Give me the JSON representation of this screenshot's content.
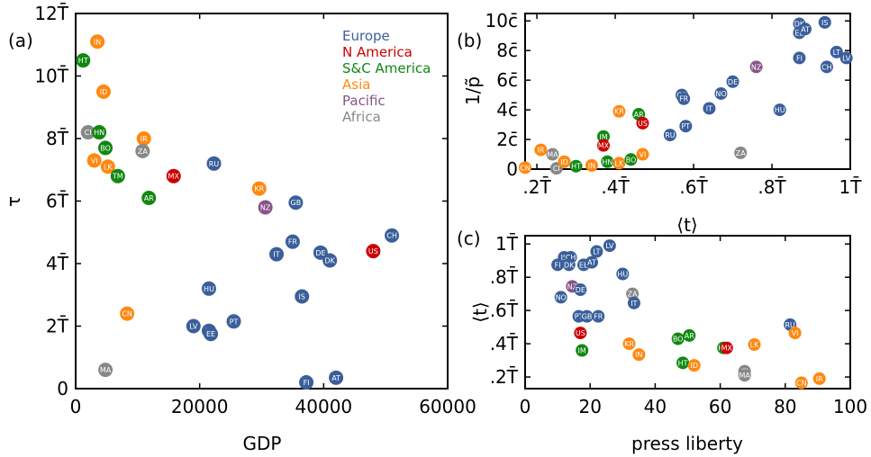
{
  "colors": {
    "Europe": "#3a5f9b",
    "N America": "#cc0000",
    "S&C America": "#118811",
    "Asia": "#ff8811",
    "Pacific": "#885588",
    "Africa": "#888888"
  },
  "chart_data": [
    {
      "type": "scatter",
      "panel_label": "(a)",
      "xlabel": "GDP",
      "ylabel": "τ",
      "xlim": [
        0,
        60000
      ],
      "ylim": [
        0,
        12
      ],
      "x_ticks": [
        0,
        20000,
        40000,
        60000
      ],
      "x_tick_labels": [
        "0",
        "20000",
        "40000",
        "60000"
      ],
      "y_ticks": [
        0,
        2,
        4,
        6,
        8,
        10,
        12
      ],
      "y_tick_labels": [
        "0",
        "2T̄",
        "4T̄",
        "6T̄",
        "8T̄",
        "10T̄",
        "12T̄"
      ],
      "legend": {
        "placement": "top-right",
        "entries": [
          "Europe",
          "N America",
          "S&C America",
          "Asia",
          "Pacific",
          "Africa"
        ]
      },
      "points": [
        {
          "label": "HT",
          "region": "S&C America",
          "x": 1200,
          "y": 10.5
        },
        {
          "label": "IN",
          "region": "Asia",
          "x": 3500,
          "y": 11.1
        },
        {
          "label": "ID",
          "region": "Asia",
          "x": 4500,
          "y": 9.5
        },
        {
          "label": "CI",
          "region": "Africa",
          "x": 2000,
          "y": 8.2
        },
        {
          "label": "HN",
          "region": "S&C America",
          "x": 3800,
          "y": 8.2
        },
        {
          "label": "BO",
          "region": "S&C America",
          "x": 4800,
          "y": 7.7
        },
        {
          "label": "VI",
          "region": "Asia",
          "x": 3000,
          "y": 7.3
        },
        {
          "label": "LK",
          "region": "Asia",
          "x": 5200,
          "y": 7.1
        },
        {
          "label": "TM",
          "region": "S&C America",
          "x": 6800,
          "y": 6.8
        },
        {
          "label": "IR",
          "region": "Asia",
          "x": 11000,
          "y": 8.0
        },
        {
          "label": "ZA",
          "region": "Africa",
          "x": 10800,
          "y": 7.6
        },
        {
          "label": "MX",
          "region": "N America",
          "x": 15800,
          "y": 6.8
        },
        {
          "label": "AR",
          "region": "S&C America",
          "x": 11800,
          "y": 6.1
        },
        {
          "label": "RU",
          "region": "Europe",
          "x": 22300,
          "y": 7.2
        },
        {
          "label": "CN",
          "region": "Asia",
          "x": 8300,
          "y": 2.4
        },
        {
          "label": "MA",
          "region": "Africa",
          "x": 4800,
          "y": 0.6
        },
        {
          "label": "HU",
          "region": "Europe",
          "x": 21500,
          "y": 3.2
        },
        {
          "label": "LV",
          "region": "Europe",
          "x": 19000,
          "y": 2.0
        },
        {
          "label": "LT",
          "region": "Europe",
          "x": 21500,
          "y": 1.85
        },
        {
          "label": "EE",
          "region": "Europe",
          "x": 21800,
          "y": 1.75
        },
        {
          "label": "PT",
          "region": "Europe",
          "x": 25500,
          "y": 2.15
        },
        {
          "label": "KR",
          "region": "Asia",
          "x": 29600,
          "y": 6.4
        },
        {
          "label": "NZ",
          "region": "Pacific",
          "x": 30600,
          "y": 5.8
        },
        {
          "label": "GB",
          "region": "Europe",
          "x": 35500,
          "y": 5.95
        },
        {
          "label": "FR",
          "region": "Europe",
          "x": 35000,
          "y": 4.7
        },
        {
          "label": "IT",
          "region": "Europe",
          "x": 32400,
          "y": 4.3
        },
        {
          "label": "DE",
          "region": "Europe",
          "x": 39500,
          "y": 4.35
        },
        {
          "label": "DK",
          "region": "Europe",
          "x": 41000,
          "y": 4.1
        },
        {
          "label": "US",
          "region": "N America",
          "x": 48000,
          "y": 4.4
        },
        {
          "label": "CH",
          "region": "Europe",
          "x": 51000,
          "y": 4.9
        },
        {
          "label": "IS",
          "region": "Europe",
          "x": 36500,
          "y": 2.95
        },
        {
          "label": "FI",
          "region": "Europe",
          "x": 37200,
          "y": 0.2
        },
        {
          "label": "AT",
          "region": "Europe",
          "x": 42000,
          "y": 0.35
        }
      ]
    },
    {
      "type": "scatter",
      "panel_label": "(b)",
      "xlabel": "⟨t⟩",
      "ylabel": "1/p̃",
      "xlim": [
        0.17,
        1.0
      ],
      "ylim": [
        0,
        10.5
      ],
      "x_ticks": [
        0.2,
        0.4,
        0.6,
        0.8,
        1.0
      ],
      "x_tick_labels": [
        ".2T̄",
        ".4T̄",
        ".6T̄",
        ".8T̄",
        "1T̄"
      ],
      "y_ticks": [
        0,
        2,
        4,
        6,
        8,
        10
      ],
      "y_tick_labels": [
        "0",
        "2c̄",
        "4c̄",
        "6c̄",
        "8c̄",
        "10c̄"
      ],
      "points": [
        {
          "label": "CN",
          "region": "Asia",
          "x": 0.17,
          "y": 0.1
        },
        {
          "label": "IR",
          "region": "Asia",
          "x": 0.21,
          "y": 1.3
        },
        {
          "label": "MA",
          "region": "Africa",
          "x": 0.24,
          "y": 1.0
        },
        {
          "label": "CI",
          "region": "Africa",
          "x": 0.25,
          "y": 0.05
        },
        {
          "label": "ID",
          "region": "Asia",
          "x": 0.27,
          "y": 0.5
        },
        {
          "label": "HT",
          "region": "S&C America",
          "x": 0.3,
          "y": 0.2
        },
        {
          "label": "IN",
          "region": "Asia",
          "x": 0.34,
          "y": 0.25
        },
        {
          "label": "IM",
          "region": "S&C America",
          "x": 0.37,
          "y": 2.2
        },
        {
          "label": "MX",
          "region": "N America",
          "x": 0.37,
          "y": 1.6
        },
        {
          "label": "HN",
          "region": "S&C America",
          "x": 0.38,
          "y": 0.5
        },
        {
          "label": "LK",
          "region": "Asia",
          "x": 0.41,
          "y": 0.4
        },
        {
          "label": "KR",
          "region": "Asia",
          "x": 0.41,
          "y": 3.9
        },
        {
          "label": "AR",
          "region": "S&C America",
          "x": 0.46,
          "y": 3.7
        },
        {
          "label": "US",
          "region": "N America",
          "x": 0.47,
          "y": 3.1
        },
        {
          "label": "BO",
          "region": "S&C America",
          "x": 0.44,
          "y": 0.65
        },
        {
          "label": "VI",
          "region": "Asia",
          "x": 0.47,
          "y": 1.0
        },
        {
          "label": "RU",
          "region": "Europe",
          "x": 0.54,
          "y": 2.3
        },
        {
          "label": "PT",
          "region": "Europe",
          "x": 0.58,
          "y": 2.9
        },
        {
          "label": "GB",
          "region": "Europe",
          "x": 0.57,
          "y": 5.0
        },
        {
          "label": "FR",
          "region": "Europe",
          "x": 0.575,
          "y": 4.75
        },
        {
          "label": "IT",
          "region": "Europe",
          "x": 0.64,
          "y": 4.1
        },
        {
          "label": "NO",
          "region": "Europe",
          "x": 0.67,
          "y": 5.1
        },
        {
          "label": "DE",
          "region": "Europe",
          "x": 0.7,
          "y": 5.9
        },
        {
          "label": "ZA",
          "region": "Africa",
          "x": 0.72,
          "y": 1.1
        },
        {
          "label": "NZ",
          "region": "Pacific",
          "x": 0.76,
          "y": 6.9
        },
        {
          "label": "HU",
          "region": "Europe",
          "x": 0.82,
          "y": 4.0
        },
        {
          "label": "DK",
          "region": "Europe",
          "x": 0.87,
          "y": 9.8
        },
        {
          "label": "EE",
          "region": "Europe",
          "x": 0.87,
          "y": 9.2
        },
        {
          "label": "AT",
          "region": "Europe",
          "x": 0.885,
          "y": 9.45
        },
        {
          "label": "FI",
          "region": "Europe",
          "x": 0.87,
          "y": 7.5
        },
        {
          "label": "IS",
          "region": "Europe",
          "x": 0.935,
          "y": 9.9
        },
        {
          "label": "CH",
          "region": "Europe",
          "x": 0.94,
          "y": 6.9
        },
        {
          "label": "LT",
          "region": "Europe",
          "x": 0.965,
          "y": 7.9
        },
        {
          "label": "LV",
          "region": "Europe",
          "x": 0.99,
          "y": 7.5
        }
      ]
    },
    {
      "type": "scatter",
      "panel_label": "(c)",
      "xlabel": "press liberty",
      "ylabel": "⟨t⟩",
      "xlim": [
        0,
        100
      ],
      "ylim": [
        0.13,
        1.05
      ],
      "x_ticks": [
        0,
        20,
        40,
        60,
        80,
        100
      ],
      "x_tick_labels": [
        "0",
        "20",
        "40",
        "60",
        "80",
        "100"
      ],
      "y_ticks": [
        0.2,
        0.4,
        0.6,
        0.8,
        1.0
      ],
      "y_tick_labels": [
        ".2T̄",
        ".4T̄",
        ".6T̄",
        ".8T̄",
        "1T̄"
      ],
      "points": [
        {
          "label": "IS",
          "region": "Europe",
          "x": 12,
          "y": 0.92
        },
        {
          "label": "CH",
          "region": "Europe",
          "x": 14,
          "y": 0.92
        },
        {
          "label": "FI",
          "region": "Europe",
          "x": 10,
          "y": 0.875
        },
        {
          "label": "DK",
          "region": "Europe",
          "x": 13.5,
          "y": 0.875
        },
        {
          "label": "EE",
          "region": "Europe",
          "x": 18,
          "y": 0.875
        },
        {
          "label": "AT",
          "region": "Europe",
          "x": 20.5,
          "y": 0.89
        },
        {
          "label": "LT",
          "region": "Europe",
          "x": 22,
          "y": 0.955
        },
        {
          "label": "LV",
          "region": "Europe",
          "x": 26,
          "y": 0.99
        },
        {
          "label": "HU",
          "region": "Europe",
          "x": 30,
          "y": 0.82
        },
        {
          "label": "NZ",
          "region": "Pacific",
          "x": 14.5,
          "y": 0.745
        },
        {
          "label": "DE",
          "region": "Europe",
          "x": 17,
          "y": 0.725
        },
        {
          "label": "NO",
          "region": "Europe",
          "x": 11,
          "y": 0.68
        },
        {
          "label": "ZA",
          "region": "Africa",
          "x": 33,
          "y": 0.7
        },
        {
          "label": "IT",
          "region": "Europe",
          "x": 33.5,
          "y": 0.645
        },
        {
          "label": "PT",
          "region": "Europe",
          "x": 16.5,
          "y": 0.565
        },
        {
          "label": "GB",
          "region": "Europe",
          "x": 19,
          "y": 0.565
        },
        {
          "label": "FR",
          "region": "Europe",
          "x": 22.5,
          "y": 0.565
        },
        {
          "label": "US",
          "region": "N America",
          "x": 17,
          "y": 0.465
        },
        {
          "label": "IM",
          "region": "S&C America",
          "x": 17.5,
          "y": 0.36
        },
        {
          "label": "KR",
          "region": "Asia",
          "x": 32,
          "y": 0.4
        },
        {
          "label": "IN",
          "region": "Asia",
          "x": 35,
          "y": 0.335
        },
        {
          "label": "BO",
          "region": "S&C America",
          "x": 47,
          "y": 0.43
        },
        {
          "label": "AR",
          "region": "S&C America",
          "x": 50.5,
          "y": 0.45
        },
        {
          "label": "HT",
          "region": "S&C America",
          "x": 48.5,
          "y": 0.285
        },
        {
          "label": "ID",
          "region": "Asia",
          "x": 52,
          "y": 0.27
        },
        {
          "label": "HN",
          "region": "S&C America",
          "x": 61,
          "y": 0.375
        },
        {
          "label": "MX",
          "region": "N America",
          "x": 62,
          "y": 0.375
        },
        {
          "label": "CI",
          "region": "Africa",
          "x": 67.5,
          "y": 0.235
        },
        {
          "label": "MA",
          "region": "Africa",
          "x": 67.5,
          "y": 0.21
        },
        {
          "label": "LK",
          "region": "Asia",
          "x": 70.5,
          "y": 0.395
        },
        {
          "label": "RU",
          "region": "Europe",
          "x": 81.5,
          "y": 0.515
        },
        {
          "label": "VI",
          "region": "Asia",
          "x": 83,
          "y": 0.465
        },
        {
          "label": "CN",
          "region": "Asia",
          "x": 85,
          "y": 0.165
        },
        {
          "label": "IR",
          "region": "Asia",
          "x": 90.5,
          "y": 0.19
        }
      ]
    }
  ]
}
